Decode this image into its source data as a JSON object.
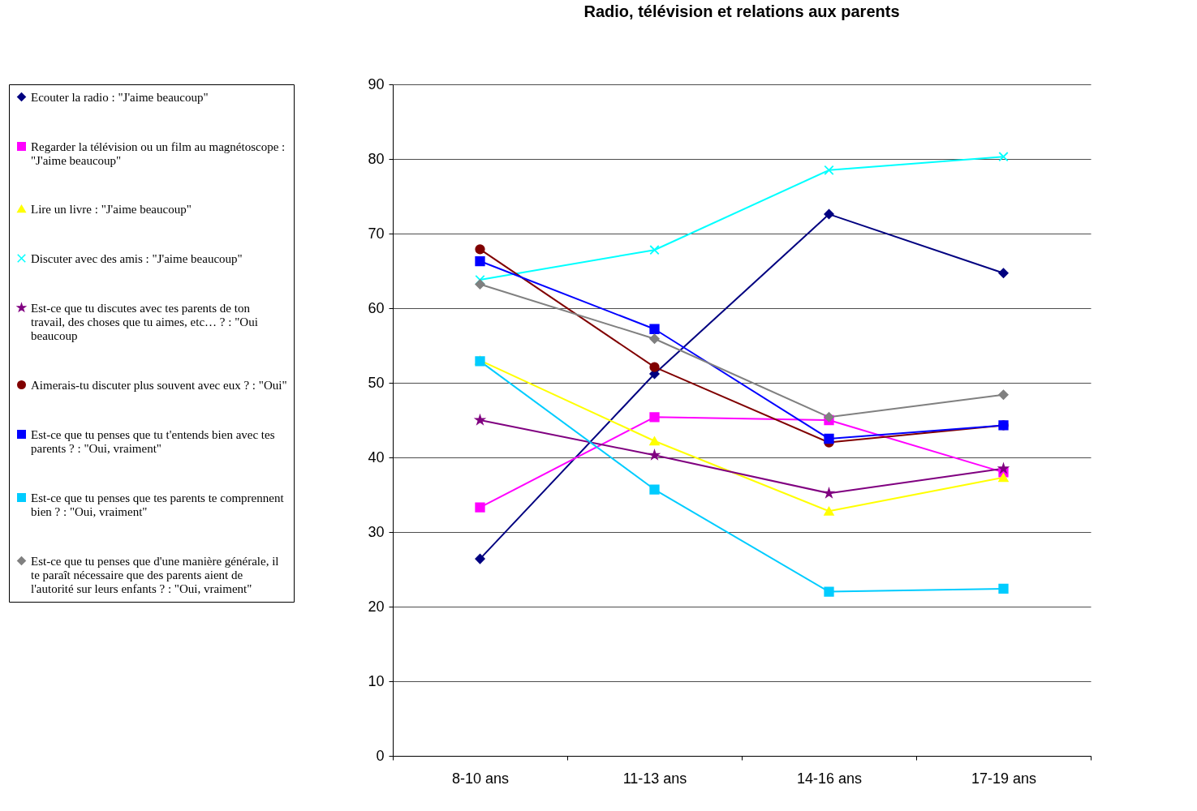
{
  "chart_data": {
    "type": "line",
    "title": "Radio, télévision et relations aux parents",
    "categories": [
      "8-10 ans",
      "11-13 ans",
      "14-16 ans",
      "17-19 ans"
    ],
    "ylim": [
      0,
      90
    ],
    "yticks": [
      0,
      10,
      20,
      30,
      40,
      50,
      60,
      70,
      80,
      90
    ],
    "grid": "y",
    "legend": "left",
    "series": [
      {
        "name": "Ecouter la radio : \"J'aime beaucoup\"",
        "color": "#000080",
        "marker": "diamond",
        "values": [
          26.4,
          51.2,
          72.6,
          64.7
        ]
      },
      {
        "name": "Regarder la télévision ou un film au magnétoscope : \"J'aime beaucoup\"",
        "color": "#ff00ff",
        "marker": "square",
        "values": [
          33.3,
          45.4,
          45.0,
          38.0
        ]
      },
      {
        "name": "Lire un livre : \"J'aime beaucoup\"",
        "color": "#ffff00",
        "marker": "triangle",
        "values": [
          53.0,
          42.2,
          32.8,
          37.3
        ]
      },
      {
        "name": "Discuter avec des amis : \"J'aime beaucoup\"",
        "color": "#00ffff",
        "marker": "cross",
        "values": [
          63.8,
          67.8,
          78.5,
          80.3
        ]
      },
      {
        "name": "Est-ce que tu discutes avec tes parents de ton travail, des choses que tu aimes, etc… ? : \"Oui beaucoup",
        "color": "#800080",
        "marker": "star",
        "values": [
          45.0,
          40.3,
          35.2,
          38.5
        ]
      },
      {
        "name": "Aimerais-tu discuter plus souvent avec eux ? : \"Oui\"",
        "color": "#800000",
        "marker": "circle",
        "values": [
          67.9,
          52.1,
          42.0,
          44.3
        ]
      },
      {
        "name": "Est-ce que tu penses que tu t'entends bien avec tes parents ? : \"Oui, vraiment\"",
        "color": "#0000ff",
        "marker": "square",
        "values": [
          66.3,
          57.2,
          42.5,
          44.3
        ]
      },
      {
        "name": "Est-ce que tu penses que tes parents te comprennent bien ? : \"Oui, vraiment\"",
        "color": "#00ccff",
        "marker": "square",
        "values": [
          52.9,
          35.7,
          22.0,
          22.4
        ]
      },
      {
        "name": "Est-ce que tu penses que d'une manière générale, il te paraît nécessaire que des parents aient de l'autorité sur leurs enfants ? : \"Oui, vraiment\"",
        "color": "#808080",
        "marker": "diamond",
        "values": [
          63.2,
          55.9,
          45.4,
          48.4
        ]
      }
    ]
  }
}
